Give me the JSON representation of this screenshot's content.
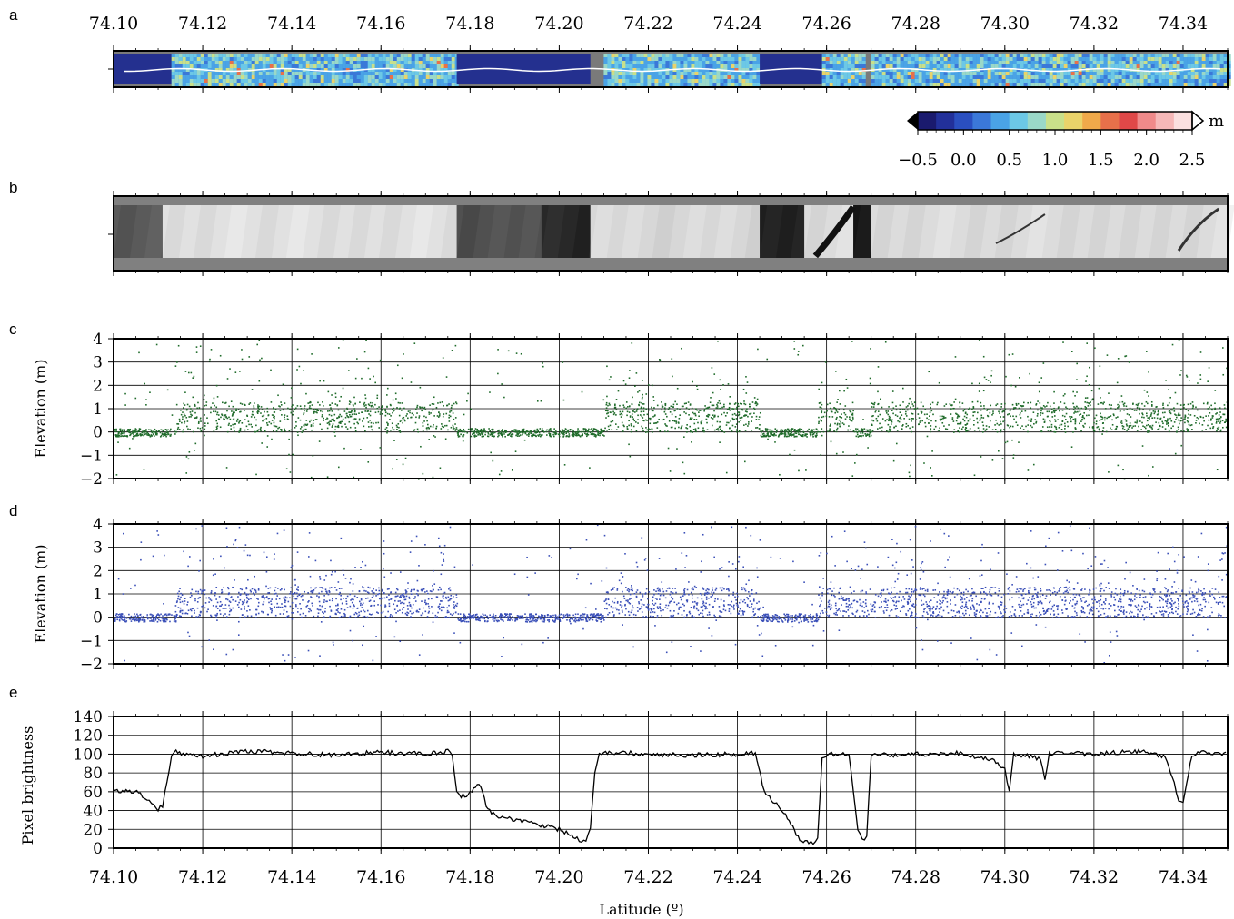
{
  "panel_labels": [
    "a",
    "b",
    "c",
    "d",
    "e"
  ],
  "xlabel": "Latitude (º)",
  "x_ticks": [
    "74.10",
    "74.12",
    "74.14",
    "74.16",
    "74.18",
    "74.20",
    "74.22",
    "74.24",
    "74.26",
    "74.28",
    "74.30",
    "74.32",
    "74.34"
  ],
  "colorbar": {
    "unit": "m",
    "ticks": [
      "−0.5",
      "0.0",
      "0.5",
      "1.0",
      "1.5",
      "2.0",
      "2.5"
    ],
    "range": [
      -0.5,
      2.5
    ],
    "colors": [
      "#1a1a6e",
      "#22309a",
      "#2a4fc0",
      "#3b78d8",
      "#4aa3e6",
      "#6cc8e6",
      "#9ad8c8",
      "#c9e08a",
      "#ead36a",
      "#f0a94a",
      "#e8704a",
      "#e04848",
      "#f08a8a",
      "#f6b8b8",
      "#fbe0e0"
    ]
  },
  "chart_data": [
    {
      "type": "heatmap",
      "panel": "a",
      "description_colorscale": "elevation (m)",
      "xlim": [
        74.1,
        74.35
      ],
      "segments": [
        {
          "x0": 74.1,
          "x1": 74.113,
          "level": "low"
        },
        {
          "x0": 74.113,
          "x1": 74.177,
          "level": "rough"
        },
        {
          "x0": 74.177,
          "x1": 74.207,
          "level": "low"
        },
        {
          "x0": 74.207,
          "x1": 74.21,
          "level": "gap"
        },
        {
          "x0": 74.21,
          "x1": 74.245,
          "level": "rough"
        },
        {
          "x0": 74.245,
          "x1": 74.259,
          "level": "low"
        },
        {
          "x0": 74.259,
          "x1": 74.268,
          "level": "rough"
        },
        {
          "x0": 74.268,
          "x1": 74.27,
          "level": "gap"
        },
        {
          "x0": 74.27,
          "x1": 74.35,
          "level": "rough"
        }
      ]
    },
    {
      "type": "heatmap",
      "panel": "b",
      "description_colorscale": "grayscale imagery",
      "xlim": [
        74.1,
        74.35
      ],
      "segments": [
        {
          "x0": 74.1,
          "x1": 74.111,
          "gray": 90
        },
        {
          "x0": 74.111,
          "x1": 74.177,
          "gray": 225
        },
        {
          "x0": 74.177,
          "x1": 74.196,
          "gray": 80
        },
        {
          "x0": 74.196,
          "x1": 74.207,
          "gray": 40
        },
        {
          "x0": 74.207,
          "x1": 74.245,
          "gray": 215
        },
        {
          "x0": 74.245,
          "x1": 74.255,
          "gray": 30
        },
        {
          "x0": 74.255,
          "x1": 74.266,
          "gray": 220
        },
        {
          "x0": 74.266,
          "x1": 74.27,
          "gray": 20
        },
        {
          "x0": 74.27,
          "x1": 74.35,
          "gray": 220
        }
      ]
    },
    {
      "type": "scatter",
      "panel": "c",
      "ylabel": "Elevation (m)",
      "xlim": [
        74.1,
        74.35
      ],
      "ylim": [
        -2,
        4
      ],
      "y_ticks": [
        "4",
        "3",
        "2",
        "1",
        "0",
        "−1",
        "−2"
      ],
      "color": "#1f6b2a",
      "flat_segments": [
        [
          74.1,
          74.114
        ],
        [
          74.177,
          74.21
        ],
        [
          74.245,
          74.258
        ],
        [
          74.266,
          74.27
        ]
      ],
      "rough_level": 0.6,
      "flat_level": 0.0
    },
    {
      "type": "scatter",
      "panel": "d",
      "ylabel": "Elevation (m)",
      "xlim": [
        74.1,
        74.35
      ],
      "ylim": [
        -2,
        4
      ],
      "y_ticks": [
        "4",
        "3",
        "2",
        "1",
        "0",
        "−1",
        "−2"
      ],
      "color": "#3a4fb8",
      "flat_segments": [
        [
          74.1,
          74.114
        ],
        [
          74.177,
          74.21
        ],
        [
          74.245,
          74.258
        ]
      ],
      "rough_level": 0.6,
      "flat_level": 0.0
    },
    {
      "type": "line",
      "panel": "e",
      "ylabel": "Pixel brightness",
      "xlim": [
        74.1,
        74.35
      ],
      "ylim": [
        0,
        140
      ],
      "y_ticks": [
        "140",
        "120",
        "100",
        "80",
        "60",
        "40",
        "20",
        "0"
      ],
      "color": "#000000",
      "x": [
        74.1,
        74.104,
        74.106,
        74.107,
        74.108,
        74.109,
        74.11,
        74.111,
        74.112,
        74.113,
        74.114,
        74.116,
        74.12,
        74.13,
        74.14,
        74.15,
        74.16,
        74.17,
        74.175,
        74.176,
        74.177,
        74.178,
        74.18,
        74.182,
        74.184,
        74.186,
        74.19,
        74.195,
        74.2,
        74.202,
        74.204,
        74.205,
        74.206,
        74.207,
        74.208,
        74.209,
        74.21,
        74.22,
        74.23,
        74.24,
        74.244,
        74.246,
        74.248,
        74.25,
        74.252,
        74.254,
        74.256,
        74.257,
        74.258,
        74.259,
        74.262,
        74.265,
        74.266,
        74.267,
        74.268,
        74.269,
        74.27,
        74.275,
        74.28,
        74.29,
        74.298,
        74.3,
        74.301,
        74.302,
        74.305,
        74.308,
        74.309,
        74.31,
        74.312,
        74.315,
        74.32,
        74.33,
        74.336,
        74.338,
        74.339,
        74.34,
        74.342,
        74.345,
        74.35
      ],
      "y": [
        62,
        60,
        60,
        52,
        50,
        48,
        42,
        45,
        70,
        96,
        102,
        100,
        98,
        103,
        101,
        99,
        102,
        100,
        103,
        100,
        58,
        55,
        58,
        70,
        40,
        35,
        30,
        25,
        20,
        15,
        10,
        8,
        9,
        20,
        80,
        100,
        102,
        100,
        99,
        100,
        101,
        60,
        50,
        40,
        25,
        8,
        6,
        5,
        10,
        98,
        100,
        99,
        60,
        20,
        10,
        12,
        100,
        99,
        100,
        101,
        92,
        85,
        60,
        100,
        98,
        95,
        72,
        100,
        102,
        101,
        100,
        103,
        98,
        70,
        50,
        48,
        100,
        102,
        100
      ]
    }
  ]
}
